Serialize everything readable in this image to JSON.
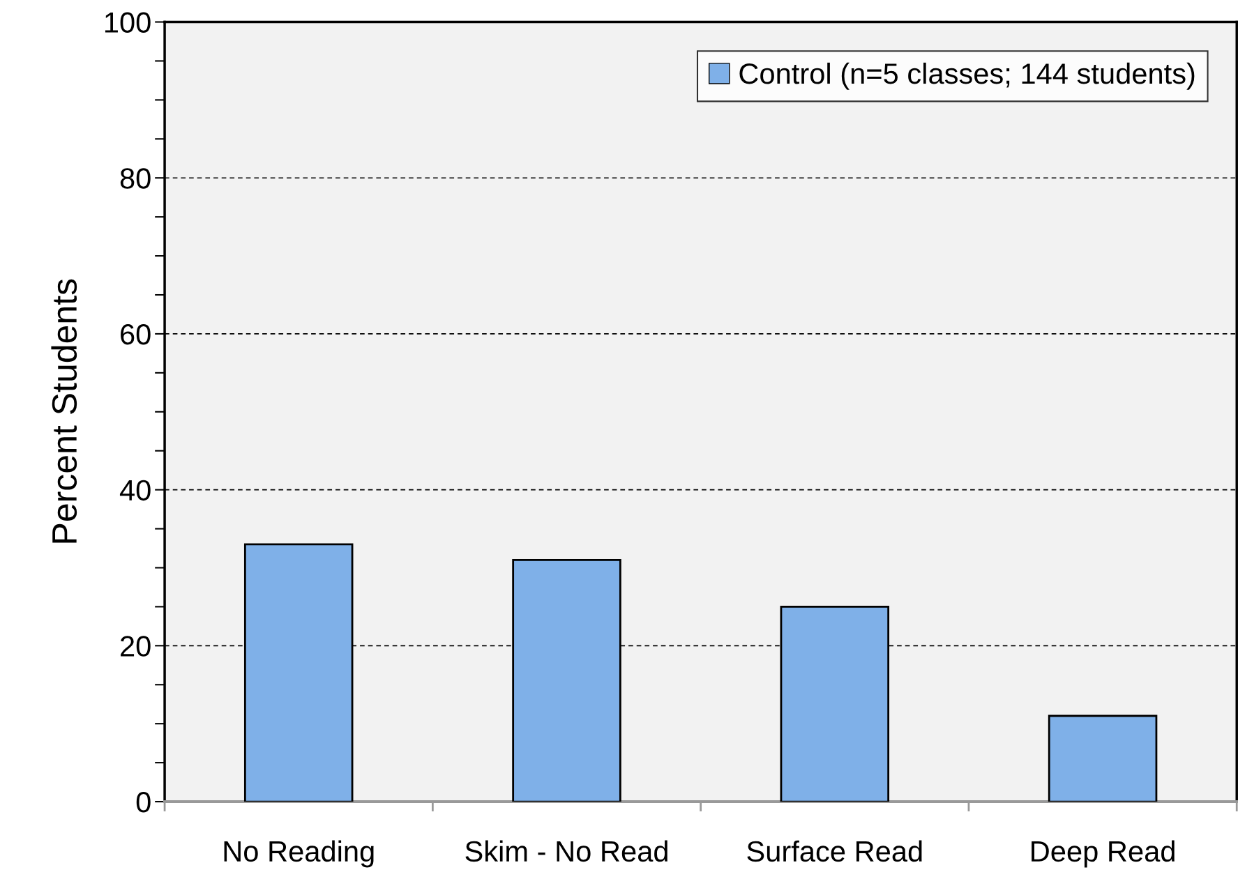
{
  "chart_data": {
    "type": "bar",
    "ylabel": "Percent Students",
    "categories": [
      "No Reading",
      "Skim - No Read",
      "Surface Read",
      "Deep Read"
    ],
    "series": [
      {
        "name": "Control (n=5 classes; 144 students)",
        "color": "#7fb0e8",
        "values": [
          33,
          31,
          25,
          11
        ]
      }
    ],
    "ylim": [
      0,
      100
    ],
    "yticks": [
      0,
      {
        "value": 5,
        "label": null
      },
      {
        "value": 10,
        "label": null
      },
      {
        "value": 15,
        "label": null
      },
      20,
      {
        "value": 25,
        "label": null
      },
      {
        "value": 30,
        "label": null
      },
      {
        "value": 35,
        "label": null
      },
      40,
      {
        "value": 45,
        "label": null
      },
      {
        "value": 50,
        "label": null
      },
      {
        "value": 55,
        "label": null
      },
      60,
      {
        "value": 65,
        "label": null
      },
      {
        "value": 70,
        "label": null
      },
      {
        "value": 75,
        "label": null
      },
      80,
      {
        "value": 85,
        "label": null
      },
      {
        "value": 90,
        "label": null
      },
      {
        "value": 95,
        "label": null
      },
      100
    ],
    "grid": "y",
    "legend": "top right"
  }
}
